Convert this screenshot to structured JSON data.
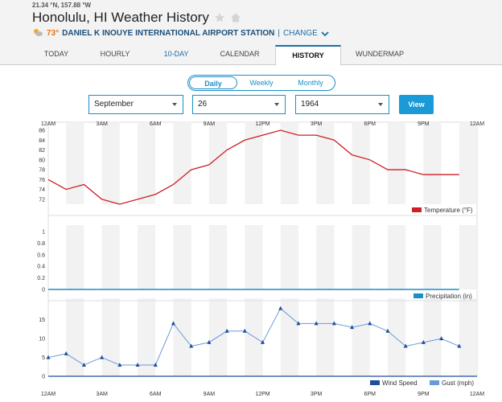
{
  "header": {
    "coords": "21.34 °N, 157.88 °W",
    "title": "Honolulu, HI Weather History",
    "current_temp": "73°",
    "station": "DANIEL K INOUYE INTERNATIONAL AIRPORT STATION",
    "separator": "|",
    "change_label": "CHANGE"
  },
  "tabs": [
    "TODAY",
    "HOURLY",
    "10-DAY",
    "CALENDAR",
    "HISTORY",
    "WUNDERMAP"
  ],
  "active_tab": "HISTORY",
  "period_toggle": {
    "options": [
      "Daily",
      "Weekly",
      "Monthly"
    ],
    "selected": "Daily"
  },
  "filters": {
    "month": "September",
    "day": "26",
    "year": "1964",
    "view_label": "View"
  },
  "colors": {
    "temperature": "#cc1f26",
    "precipitation": "#1a8fc4",
    "wind": "#1f4e9c",
    "gust": "#6a9bd8",
    "accent": "#1a9ad6"
  },
  "chart_data": [
    {
      "type": "line",
      "x": [
        "12AM",
        "1AM",
        "2AM",
        "3AM",
        "4AM",
        "5AM",
        "6AM",
        "7AM",
        "8AM",
        "9AM",
        "10AM",
        "11AM",
        "12PM",
        "1PM",
        "2PM",
        "3PM",
        "4PM",
        "5PM",
        "6PM",
        "7PM",
        "8PM",
        "9PM",
        "10PM",
        "11PM"
      ],
      "series": [
        {
          "name": "Temperature (°F)",
          "values": [
            76,
            74,
            75,
            72,
            71,
            72,
            73,
            75,
            78,
            79,
            82,
            84,
            85,
            86,
            85,
            85,
            84,
            81,
            80,
            78,
            78,
            77,
            77,
            77
          ]
        }
      ],
      "yticks": [
        "72",
        "74",
        "76",
        "78",
        "80",
        "82",
        "84",
        "86"
      ],
      "ylim": [
        71,
        86
      ]
    },
    {
      "type": "line",
      "series": [
        {
          "name": "Precipitation (in)",
          "values": [
            0,
            0,
            0,
            0,
            0,
            0,
            0,
            0,
            0,
            0,
            0,
            0,
            0,
            0,
            0,
            0,
            0,
            0,
            0,
            0,
            0,
            0,
            0,
            0
          ]
        }
      ],
      "yticks": [
        "0",
        "0.2",
        "0.4",
        "0.6",
        "0.8",
        "1"
      ],
      "ylim": [
        0,
        1
      ]
    },
    {
      "type": "line",
      "series": [
        {
          "name": "Wind Speed",
          "values": [
            5,
            6,
            3,
            5,
            3,
            3,
            3,
            14,
            8,
            9,
            12,
            12,
            9,
            18,
            14,
            14,
            14,
            13,
            14,
            12,
            8,
            9,
            10,
            8
          ]
        },
        {
          "name": "Gust (mph)",
          "values": []
        }
      ],
      "yticks": [
        "0",
        "5",
        "10",
        "15"
      ],
      "ylim": [
        0,
        19
      ]
    }
  ],
  "x_tick_labels": [
    "12AM",
    "3AM",
    "6AM",
    "9AM",
    "12PM",
    "3PM",
    "6PM",
    "9PM",
    "12AM"
  ]
}
